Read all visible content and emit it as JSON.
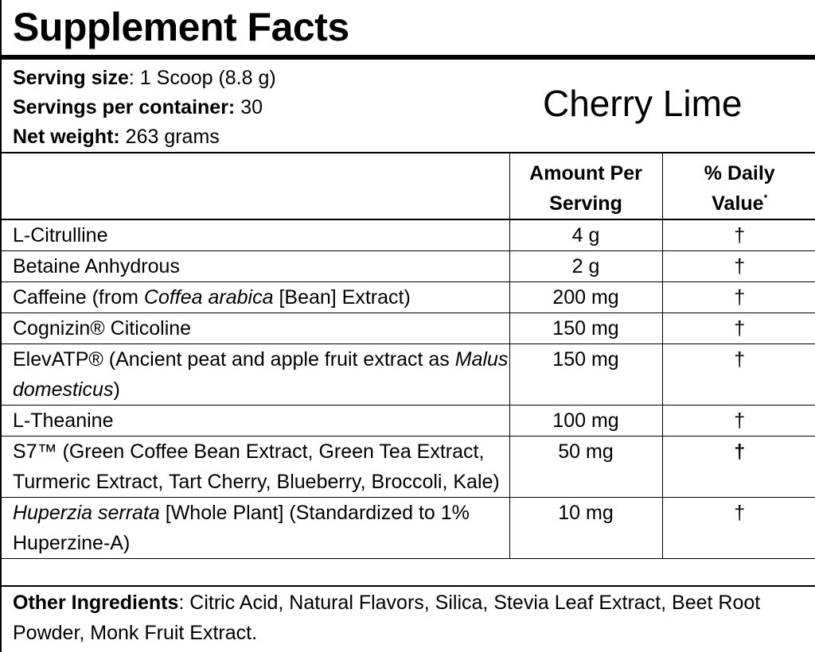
{
  "title": "Supplement Facts",
  "flavor": "Cherry Lime",
  "serving": {
    "size_label": "Serving size",
    "size_value": ": 1 Scoop (8.8 g)",
    "per_container_label": "Servings per container:",
    "per_container_value": " 30",
    "net_weight_label": "Net weight:",
    "net_weight_value": " 263 grams"
  },
  "table": {
    "header_amount_line1": "Amount Per",
    "header_amount_line2": "Serving",
    "header_dv_line1": "% Daily",
    "header_dv_line2": "Value",
    "header_dv_mark": "*",
    "rows": [
      {
        "name": "L-Citrulline",
        "amount": "4 g",
        "dv": "†"
      },
      {
        "name": "Betaine Anhydrous",
        "amount": "2 g",
        "dv": "†"
      },
      {
        "name_pre": "Caffeine (from ",
        "name_italic": "Coffea arabica",
        "name_post": " [Bean] Extract)",
        "amount": "200 mg",
        "dv": "†"
      },
      {
        "name": "Cognizin® Citicoline",
        "amount": "150 mg",
        "dv": "†"
      },
      {
        "name_pre": "ElevATP® (Ancient peat and apple fruit extract as ",
        "name_italic": "Malus domesticus",
        "name_post": ")",
        "amount": "150 mg",
        "dv": "†"
      },
      {
        "name": "L-Theanine",
        "amount": "100 mg",
        "dv": "†"
      },
      {
        "name": "S7™ (Green Coffee Bean Extract, Green Tea Extract, Turmeric Extract, Tart Cherry, Blueberry, Broccoli, Kale)",
        "amount": "50 mg",
        "dv": "†"
      },
      {
        "name_italic": "Huperzia serrata",
        "name_post": " [Whole Plant] (Standardized to 1% Huperzine-A)",
        "amount": "10 mg",
        "dv": "†"
      }
    ]
  },
  "other": {
    "label": "Other Ingredients",
    "text": ": Citric Acid, Natural Flavors, Silica, Stevia Leaf Extract, Beet Root Powder, Monk Fruit Extract."
  }
}
